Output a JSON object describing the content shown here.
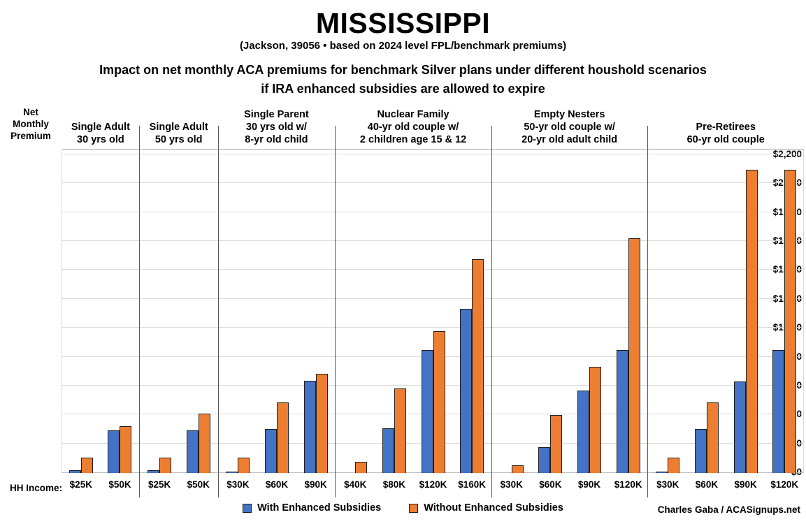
{
  "chart_data": {
    "type": "bar",
    "title": "MISSISSIPPI",
    "subtitle": "(Jackson, 39056 • based on 2024 level FPL/benchmark premiums)",
    "description": [
      "Impact on net monthly ACA premiums for benchmark Silver plans under different houshold scenarios",
      "if IRA enhanced subsidies are allowed to expire"
    ],
    "ylabel": "Net Monthly Premium",
    "xlabel": "HH Income:",
    "ylim": [
      0,
      2200
    ],
    "ytick_interval": 200,
    "y_tick_labels": [
      "$0",
      "$200",
      "$400",
      "$600",
      "$800",
      "$1,000",
      "$1,200",
      "$1,400",
      "$1,600",
      "$1,800",
      "$2,000",
      "$2,200"
    ],
    "grid": true,
    "legend_position": "bottom",
    "legend": [
      "With Enhanced Subsidies",
      "Without Enhanced Subsidies"
    ],
    "series_colors": [
      "#4472C4",
      "#ED7D31"
    ],
    "groups": [
      {
        "label_lines": [
          "Single Adult",
          "30 yrs old"
        ],
        "categories": [
          "$25K",
          "$50K"
        ],
        "series": [
          {
            "name": "With Enhanced Subsidies",
            "values": [
              20,
              295
            ]
          },
          {
            "name": "Without Enhanced Subsidies",
            "values": [
              105,
              325
            ]
          }
        ]
      },
      {
        "label_lines": [
          "Single Adult",
          "50 yrs old"
        ],
        "categories": [
          "$25K",
          "$50K"
        ],
        "series": [
          {
            "name": "With Enhanced Subsidies",
            "values": [
              20,
              295
            ]
          },
          {
            "name": "Without Enhanced Subsidies",
            "values": [
              105,
              410
            ]
          }
        ]
      },
      {
        "label_lines": [
          "Single Parent",
          "30 yrs old w/",
          "8-yr old child"
        ],
        "categories": [
          "$30K",
          "$60K",
          "$90K"
        ],
        "series": [
          {
            "name": "With Enhanced Subsidies",
            "values": [
              5,
              305,
              640
            ]
          },
          {
            "name": "Without Enhanced Subsidies",
            "values": [
              105,
              490,
              685
            ]
          }
        ]
      },
      {
        "label_lines": [
          "Nuclear Family",
          "40-yr old couple w/",
          "2 children age 15 & 12"
        ],
        "categories": [
          "$40K",
          "$80K",
          "$120K",
          "$160K"
        ],
        "series": [
          {
            "name": "With Enhanced Subsidies",
            "values": [
              0,
              310,
              850,
              1135
            ]
          },
          {
            "name": "Without Enhanced Subsidies",
            "values": [
              75,
              585,
              980,
              1480
            ]
          }
        ]
      },
      {
        "label_lines": [
          "Empty Nesters",
          "50-yr old couple w/",
          "20-yr old adult child"
        ],
        "categories": [
          "$30K",
          "$60K",
          "$90K",
          "$120K"
        ],
        "series": [
          {
            "name": "With Enhanced Subsidies",
            "values": [
              0,
              180,
              570,
              850
            ]
          },
          {
            "name": "Without Enhanced Subsidies",
            "values": [
              55,
              400,
              735,
              1625
            ]
          }
        ]
      },
      {
        "label_lines": [
          "Pre-Retirees",
          "60-yr old couple"
        ],
        "categories": [
          "$30K",
          "$60K",
          "$90K",
          "$120K"
        ],
        "series": [
          {
            "name": "With Enhanced Subsidies",
            "values": [
              10,
              305,
              635,
              850
            ]
          },
          {
            "name": "Without Enhanced Subsidies",
            "values": [
              105,
              490,
              2100,
              2100
            ]
          }
        ]
      }
    ],
    "credit": "Charles Gaba / ACASignups.net"
  }
}
